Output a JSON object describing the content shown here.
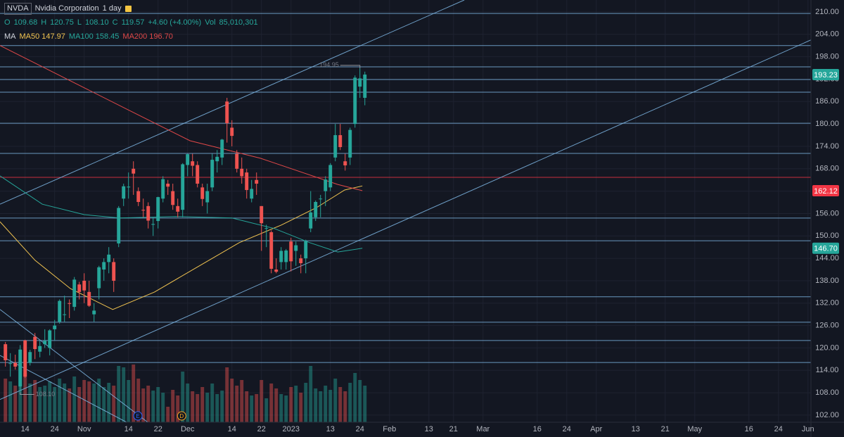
{
  "chart_data": {
    "type": "candlestick",
    "symbol": "NVDA",
    "name": "Nvidia Corporation",
    "interval": "1 day",
    "ohlc_header": {
      "o_label": "O",
      "o": 109.68,
      "h_label": "H",
      "h": 120.75,
      "l_label": "L",
      "l": 108.1,
      "l_text": "108.10",
      "c_label": "C",
      "c": 119.57,
      "change": {
        "value": 4.6,
        "label": "+4.60 (+4.00%)"
      },
      "vol_label": "Vol",
      "vol": {
        "value": 85010301,
        "label": "85,010,301"
      }
    },
    "ma_label": "MA",
    "x": [
      0,
      1,
      2,
      3,
      4,
      5,
      6,
      7,
      8,
      9,
      10,
      11,
      12,
      13,
      14,
      15,
      16,
      17,
      18,
      19,
      20,
      21,
      22,
      23,
      24,
      25,
      26,
      27,
      28,
      29,
      30,
      31,
      32,
      33,
      34,
      35,
      36,
      37,
      38,
      39,
      40,
      41,
      42,
      43,
      44,
      45,
      46,
      47,
      48,
      49,
      50,
      51,
      52,
      53,
      54,
      55,
      56,
      57,
      58,
      59,
      60,
      61,
      62,
      63,
      64,
      65,
      66,
      67,
      68,
      69,
      70,
      71,
      72,
      73
    ],
    "open": [
      121,
      115.8,
      116,
      109.68,
      122,
      116,
      123,
      119,
      121,
      120,
      125,
      127,
      129,
      132,
      131,
      137,
      138,
      135,
      129,
      136,
      141,
      143,
      143,
      148,
      160,
      163,
      168,
      162,
      157,
      158,
      153,
      154,
      160,
      164,
      162,
      158,
      157,
      169,
      170,
      169,
      163,
      159,
      163,
      170,
      171,
      186,
      179,
      172,
      168,
      167,
      160,
      165,
      158,
      152,
      151,
      141,
      143,
      143,
      148.5,
      146,
      144,
      144,
      152,
      155,
      160,
      162,
      163,
      171,
      177,
      170,
      171,
      180,
      190,
      187
    ],
    "high": [
      121.6,
      118.6,
      118.2,
      120.75,
      122.2,
      119.5,
      124,
      122,
      125,
      125,
      127.5,
      133,
      134,
      133,
      139,
      137.7,
      140,
      138,
      132,
      142,
      144,
      147,
      144,
      158,
      164,
      167,
      170,
      163,
      160,
      159,
      155,
      160.5,
      166,
      165,
      164,
      160,
      169.5,
      172,
      172,
      170,
      164,
      164,
      172,
      173,
      176,
      187,
      181,
      173,
      171,
      168,
      165,
      167,
      158,
      153,
      151.5,
      144,
      147,
      146.5,
      149.5,
      148.5,
      145,
      149,
      162,
      159.5,
      161,
      166,
      169.5,
      180,
      180,
      172,
      179,
      193,
      194.95,
      194
    ],
    "low": [
      115,
      112.3,
      114.2,
      108.1,
      112,
      115.3,
      117,
      117.5,
      120,
      118,
      122,
      126.5,
      127,
      128,
      130,
      133,
      132,
      131,
      127,
      133,
      138,
      140,
      135,
      147,
      158,
      160,
      161,
      158,
      155,
      152,
      150,
      152,
      159,
      161,
      157,
      155,
      155,
      166,
      166,
      163,
      158,
      156,
      162,
      167,
      169,
      175,
      174,
      167,
      164,
      160,
      159,
      161,
      146,
      147,
      140,
      140,
      141,
      141,
      140.5,
      142,
      140,
      140,
      151,
      154,
      155,
      158,
      162,
      170,
      173,
      167.5,
      169,
      179,
      187,
      185
    ],
    "close": [
      116.7,
      115.9,
      115,
      119.57,
      112.3,
      118.9,
      119.7,
      120.5,
      121.9,
      124.7,
      126,
      132.6,
      129,
      131.8,
      138.3,
      135,
      135.4,
      131.3,
      130,
      141.6,
      143,
      145,
      138,
      157.5,
      163.3,
      163.2,
      166.7,
      159.1,
      156.8,
      154.1,
      153.2,
      160.4,
      165.2,
      163.2,
      158.3,
      156.5,
      169.2,
      171.9,
      168.8,
      164,
      159.9,
      162,
      170.4,
      171.2,
      175.8,
      180.2,
      176.8,
      168,
      166,
      162.3,
      162.6,
      164,
      153.4,
      152.1,
      141.2,
      140.4,
      146,
      146.1,
      143.2,
      147.5,
      142.7,
      148.6,
      156.3,
      159.1,
      160,
      165.1,
      169,
      177,
      173.8,
      168.9,
      178.4,
      192.4,
      192.2,
      193.23
    ],
    "volume": [
      62000000,
      58000000,
      52000000,
      85010301,
      70000000,
      55000000,
      60000000,
      50000000,
      52000000,
      58000000,
      50000000,
      62000000,
      55000000,
      48000000,
      65000000,
      50000000,
      60000000,
      58000000,
      55000000,
      62000000,
      50000000,
      56000000,
      52000000,
      80000000,
      78000000,
      60000000,
      82000000,
      62000000,
      48000000,
      52000000,
      45000000,
      50000000,
      42000000,
      22000000,
      46000000,
      38000000,
      72000000,
      55000000,
      44000000,
      40000000,
      50000000,
      42000000,
      55000000,
      40000000,
      45000000,
      78000000,
      62000000,
      52000000,
      60000000,
      44000000,
      38000000,
      40000000,
      60000000,
      34000000,
      55000000,
      48000000,
      40000000,
      38000000,
      50000000,
      52000000,
      42000000,
      56000000,
      80000000,
      48000000,
      44000000,
      52000000,
      46000000,
      62000000,
      50000000,
      44000000,
      56000000,
      70000000,
      60000000,
      52000000
    ],
    "up_color": "#26a69a",
    "down_color": "#ef5350",
    "series": [
      {
        "name": "MA50",
        "color": "#f0c350",
        "header_value": 147.97,
        "x": [
          -1.1,
          6,
          13.2,
          21.8,
          30.3,
          38.9,
          47.5,
          56,
          63.2,
          68.9,
          72.5
        ],
        "values": [
          153.8,
          143.5,
          135.9,
          130.3,
          135,
          141.6,
          148.2,
          152.9,
          157.6,
          162.3,
          163.4
        ]
      },
      {
        "name": "MA100",
        "color": "#26a69a",
        "header_value": 158.45,
        "x": [
          -1.1,
          7.5,
          16,
          23.2,
          34.6,
          46,
          54.6,
          61.8,
          67.5,
          72.5
        ],
        "values": [
          166.1,
          158.5,
          155.7,
          154.8,
          155.2,
          154.8,
          152,
          148.2,
          145.7,
          146.7
        ]
      },
      {
        "name": "MA200",
        "color": "#e04848",
        "header_value": {
          "value": 196.7,
          "label": "196.70"
        },
        "x": [
          -1.1,
          24.6,
          37.5,
          51.8,
          67.5,
          72.5
        ],
        "values": [
          201,
          184,
          175.5,
          170.8,
          163.8,
          162.12
        ]
      }
    ],
    "hlines": [
      {
        "value": 209.6,
        "color": "#7fb8e6"
      },
      {
        "value": 201,
        "color": "#7fb8e6"
      },
      {
        "value": 195.3,
        "color": "#7fb8e6"
      },
      {
        "value": 191.9,
        "color": "#7fb8e6"
      },
      {
        "value": 188.5,
        "color": "#7fb8e6"
      },
      {
        "value": 180.2,
        "color": "#7fb8e6"
      },
      {
        "value": 172.1,
        "color": "#7fb8e6"
      },
      {
        "value": 165.7,
        "color": "#f23645"
      },
      {
        "value": 154.8,
        "color": "#7fb8e6"
      },
      {
        "value": 148.7,
        "color": "#7fb8e6"
      },
      {
        "value": 133.7,
        "color": "#7fb8e6"
      },
      {
        "value": 126.9,
        "color": "#7fb8e6"
      },
      {
        "value": 122,
        "color": "#7fb8e6"
      },
      {
        "value": 116.1,
        "color": "#7fb8e6"
      }
    ],
    "trendlines": [
      {
        "x": [
          -1.1,
          93.2
        ],
        "values": [
          158.5,
          213.2
        ],
        "color": "#7fb8e6"
      },
      {
        "x": [
          -1.1,
          163.6
        ],
        "values": [
          106.2,
          202.5
        ],
        "color": "#7fb8e6"
      },
      {
        "x": [
          -1.1,
          28.9
        ],
        "values": [
          130.3,
          100.1
        ],
        "color": "#7fb8e6"
      },
      {
        "x": [
          -1.1,
          24.6
        ],
        "values": [
          118,
          100.1
        ],
        "color": "#7fb8e6"
      }
    ],
    "annotations": [
      {
        "label": "194.95",
        "value": 194.95,
        "x": 72
      },
      {
        "label": "108.10",
        "value": 108.1,
        "x": 3
      }
    ],
    "events": [
      {
        "label": "E",
        "x": 26.9,
        "color": "#2962ff"
      },
      {
        "label": "D",
        "x": 35.8,
        "color": "#f5a623"
      }
    ],
    "price_labels": [
      {
        "value": 193.23,
        "label": "193.23",
        "color": "#26a69a"
      },
      {
        "value": 162.12,
        "label": "162.12",
        "color": "#f23645"
      },
      {
        "value": 146.7,
        "label": "146.70",
        "color": "#26a69a"
      }
    ],
    "xlim": [
      -1.1,
      163.6
    ],
    "ylim": [
      100.1,
      213.2
    ],
    "y3lim": [
      0,
      600000000
    ],
    "grid": true,
    "yticks": [
      {
        "value": 210,
        "label": "210.00"
      },
      {
        "value": 204,
        "label": "204.00"
      },
      {
        "value": 198,
        "label": "198.00"
      },
      {
        "value": 192,
        "label": "192.00"
      },
      {
        "value": 186,
        "label": "186.00"
      },
      {
        "value": 180,
        "label": "180.00"
      },
      {
        "value": 174,
        "label": "174.00"
      },
      {
        "value": 168,
        "label": "168.00"
      },
      {
        "value": 162,
        "label": "162.00"
      },
      {
        "value": 156,
        "label": "156.00"
      },
      {
        "value": 150,
        "label": "150.00"
      },
      {
        "value": 144,
        "label": "144.00"
      },
      {
        "value": 138,
        "label": "138.00"
      },
      {
        "value": 132,
        "label": "132.00"
      },
      {
        "value": 126,
        "label": "126.00"
      },
      {
        "value": 120,
        "label": "120.00"
      },
      {
        "value": 114,
        "label": "114.00"
      },
      {
        "value": 108,
        "label": "108.00"
      },
      {
        "value": 102,
        "label": "102.00"
      }
    ],
    "xticks": [
      {
        "value": 4,
        "label": "14"
      },
      {
        "value": 10,
        "label": "24"
      },
      {
        "value": 16,
        "label": "Nov"
      },
      {
        "value": 25,
        "label": "14"
      },
      {
        "value": 31,
        "label": "22"
      },
      {
        "value": 37,
        "label": "Dec"
      },
      {
        "value": 46,
        "label": "14"
      },
      {
        "value": 52,
        "label": "22"
      },
      {
        "value": 58,
        "label": "2023"
      },
      {
        "value": 66,
        "label": "13"
      },
      {
        "value": 72,
        "label": "24"
      },
      {
        "value": 78,
        "label": "Feb"
      },
      {
        "value": 86,
        "label": "13"
      },
      {
        "value": 91,
        "label": "21"
      },
      {
        "value": 97,
        "label": "Mar"
      },
      {
        "value": 108,
        "label": "16"
      },
      {
        "value": 114,
        "label": "24"
      },
      {
        "value": 120,
        "label": "Apr"
      },
      {
        "value": 128,
        "label": "13"
      },
      {
        "value": 134,
        "label": "21"
      },
      {
        "value": 140,
        "label": "May"
      },
      {
        "value": 151,
        "label": "16"
      },
      {
        "value": 157,
        "label": "24"
      },
      {
        "value": 163,
        "label": "Jun"
      }
    ]
  }
}
